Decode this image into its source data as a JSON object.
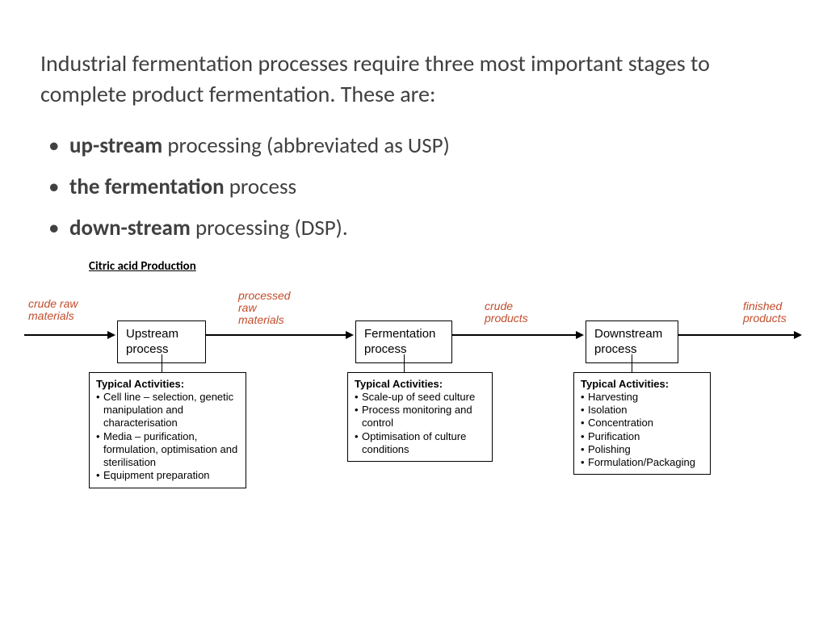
{
  "intro": "Industrial fermentation processes require three most important stages to complete product fermentation. These are:",
  "bullets": [
    {
      "bold": "up-stream",
      "rest": " processing (abbreviated as USP)"
    },
    {
      "bold": "the fermentation",
      "rest": " process"
    },
    {
      "bold": "down-stream",
      "rest": " processing (DSP)."
    }
  ],
  "diagram": {
    "title": "Citric acid Production",
    "labels": {
      "l1": "crude raw\nmaterials",
      "l2": "processed\nraw\nmaterials",
      "l3": "crude\nproducts",
      "l4": "finished\nproducts"
    },
    "stages": {
      "s1": "Upstream\nprocess",
      "s2": "Fermentation\nprocess",
      "s3": "Downstream\nprocess"
    },
    "activities": {
      "header": "Typical Activities:",
      "a1": [
        "Cell line – selection, genetic manipulation and characterisation",
        "Media – purification, formulation, optimisation and sterilisation",
        "Equipment preparation"
      ],
      "a2": [
        "Scale-up of seed culture",
        "Process monitoring and control",
        "Optimisation of culture conditions"
      ],
      "a3": [
        "Harvesting",
        "Isolation",
        "Concentration",
        "Purification",
        "Polishing",
        "Formulation/Packaging"
      ]
    },
    "style": {
      "label_color": "#c24d2c",
      "box_border": "#000000",
      "arrow_color": "#000000",
      "label_fontsize": 14,
      "stage_fontsize": 15,
      "activity_fontsize": 13
    }
  }
}
